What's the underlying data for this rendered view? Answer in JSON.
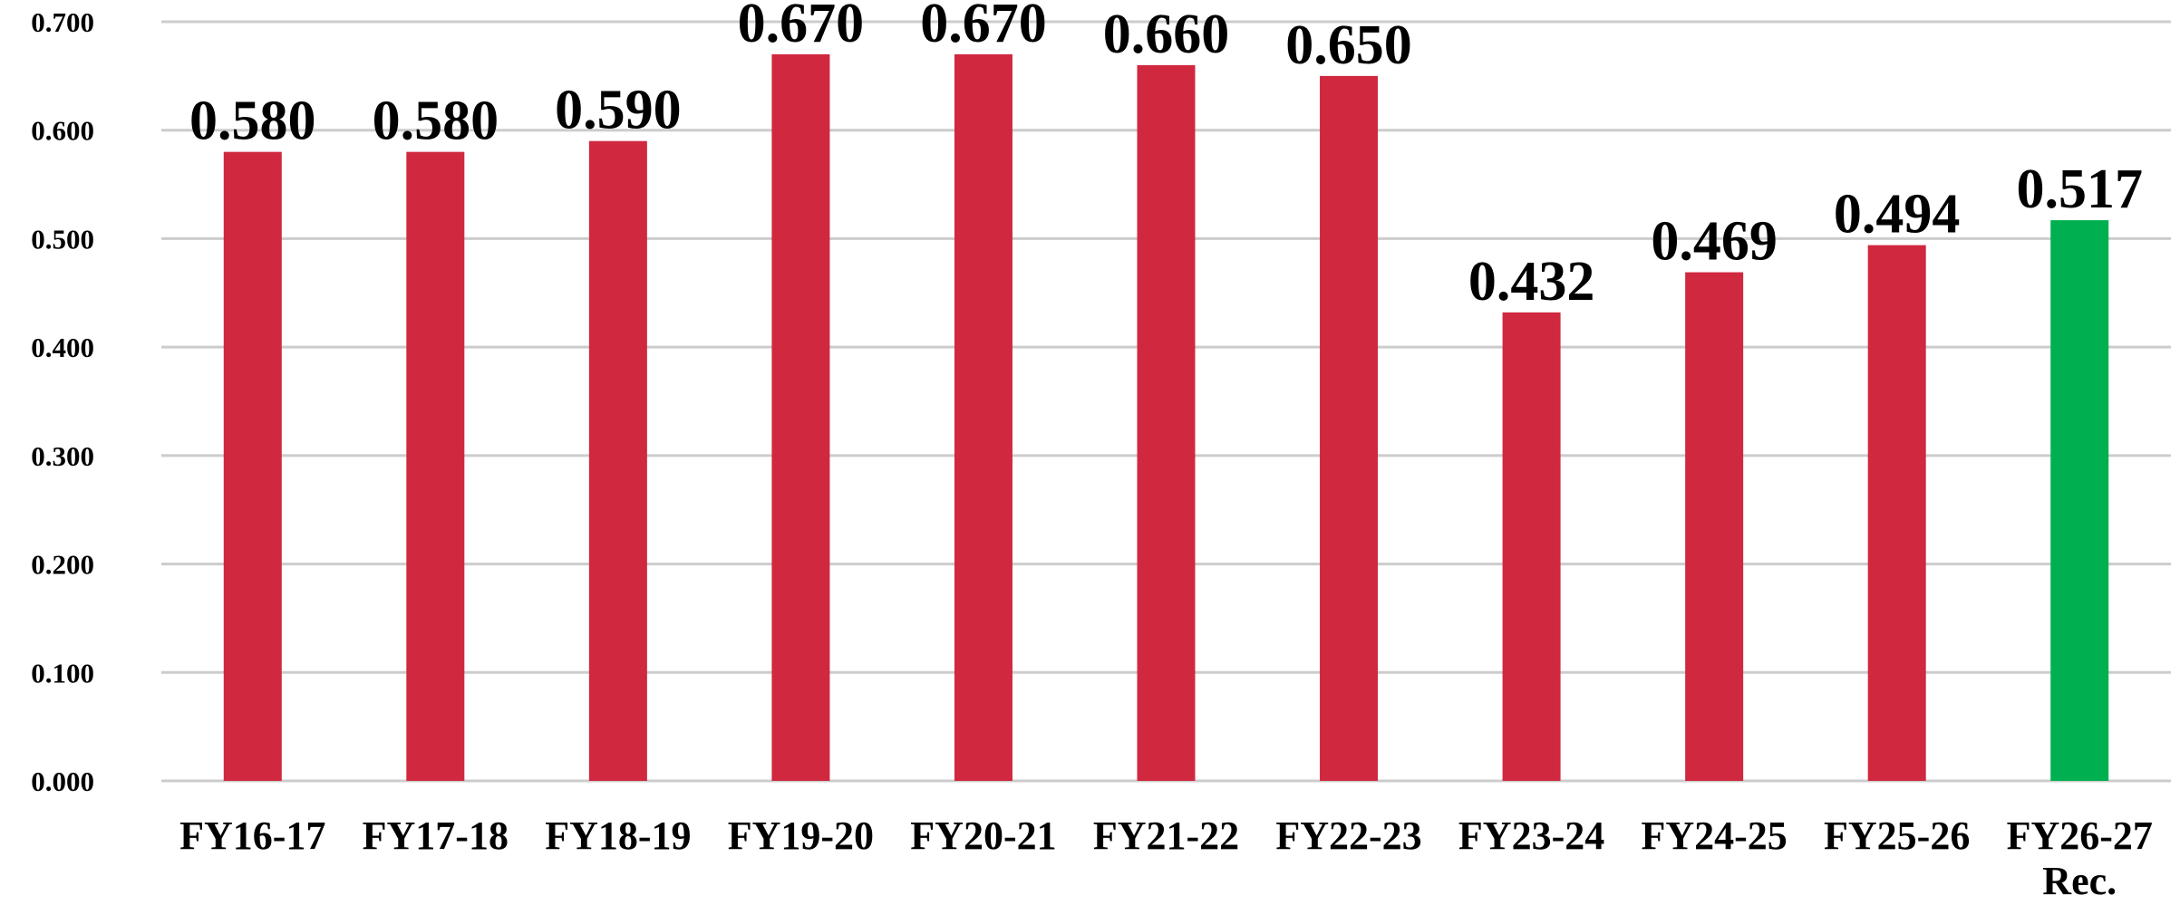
{
  "chart_data": {
    "type": "bar",
    "title": "",
    "xlabel": "",
    "ylabel": "",
    "categories": [
      "FY16-17",
      "FY17-18",
      "FY18-19",
      "FY19-20",
      "FY20-21",
      "FY21-22",
      "FY22-23",
      "FY23-24",
      "FY24-25",
      "FY25-26",
      "FY26-27\nRec."
    ],
    "values": [
      0.58,
      0.58,
      0.59,
      0.67,
      0.67,
      0.66,
      0.65,
      0.432,
      0.469,
      0.494,
      0.517
    ],
    "value_labels": [
      "0.580",
      "0.580",
      "0.590",
      "0.670",
      "0.670",
      "0.660",
      "0.650",
      "0.432",
      "0.469",
      "0.494",
      "0.517"
    ],
    "y_ticks": [
      0,
      0.1,
      0.2,
      0.3,
      0.4,
      0.5,
      0.6,
      0.7
    ],
    "y_tick_labels": [
      "0.000",
      "0.100",
      "0.200",
      "0.300",
      "0.400",
      "0.500",
      "0.600",
      "0.700"
    ],
    "ylim": [
      0,
      0.7
    ],
    "grid": true,
    "legend": "none",
    "colors": {
      "bar": "#d0283f",
      "highlight": "#00b050",
      "grid": "#cccccc",
      "text": "#000000"
    },
    "highlight_index": 10
  }
}
